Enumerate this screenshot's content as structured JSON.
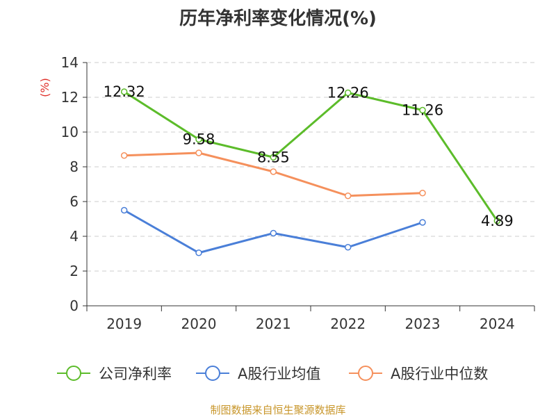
{
  "chart_data": {
    "type": "line",
    "title": "历年净利率变化情况(%)",
    "ylabel": "(%)",
    "xlabel": "",
    "categories": [
      "2019",
      "2020",
      "2021",
      "2022",
      "2023",
      "2024"
    ],
    "ylim": [
      0,
      14
    ],
    "yticks": [
      "0",
      "2",
      "4",
      "6",
      "8",
      "10",
      "12",
      "14"
    ],
    "grid": true,
    "legend_position": "bottom",
    "series": [
      {
        "name": "公司净利率",
        "color": "#5cbc2a",
        "values": [
          12.32,
          9.58,
          8.55,
          12.26,
          11.26,
          4.89
        ],
        "labels": [
          "12.32",
          "9.58",
          "8.55",
          "12.26",
          "11.26",
          "4.89"
        ]
      },
      {
        "name": "A股行业均值",
        "color": "#4a7fd8",
        "values": [
          5.5,
          3.05,
          4.18,
          3.37,
          4.8,
          null
        ]
      },
      {
        "name": "A股行业中位数",
        "color": "#f5905c",
        "values": [
          8.65,
          8.8,
          7.72,
          6.33,
          6.49,
          null
        ]
      }
    ]
  },
  "footer": {
    "source": "制图数据来自恒生聚源数据库"
  }
}
